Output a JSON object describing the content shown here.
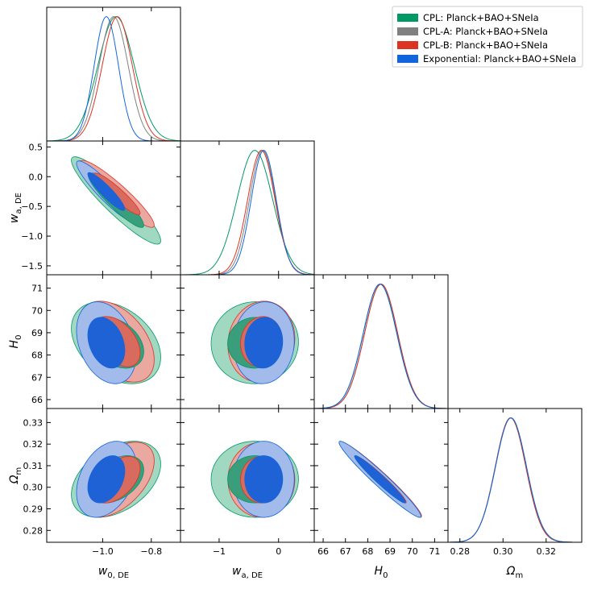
{
  "chart_data": {
    "type": "corner",
    "title": "",
    "legend": {
      "placement": "top-right",
      "entries": [
        {
          "label": "CPL: Planck+BAO+SNeIa",
          "color": "#009966"
        },
        {
          "label": "CPL-A: Planck+BAO+SNeIa",
          "color": "#808080"
        },
        {
          "label": "CPL-B: Planck+BAO+SNeIa",
          "color": "#dd3322"
        },
        {
          "label": "Exponential: Planck+BAO+SNeIa",
          "color": "#1166dd"
        }
      ]
    },
    "parameters": [
      {
        "name": "w0",
        "label": "w",
        "sub": "0, DE",
        "range": [
          -1.23,
          -0.68
        ],
        "ticks": [
          -1.0,
          -0.8
        ],
        "tick_labels": [
          "−1.0",
          "−0.8"
        ]
      },
      {
        "name": "wa",
        "label": "w",
        "sub": "a, DE",
        "range": [
          -1.65,
          0.6
        ],
        "ticks": [
          -1,
          0
        ],
        "tick_labels": [
          "−1",
          "0"
        ],
        "y_ticks": [
          0.5,
          0.0,
          -0.5,
          -1.0,
          -1.5
        ],
        "y_tick_labels": [
          "0.5",
          "0.0",
          "−0.5",
          "−1.0",
          "−1.5"
        ]
      },
      {
        "name": "H0",
        "label": "H",
        "sub": "0",
        "range": [
          65.6,
          71.6
        ],
        "ticks": [
          66,
          67,
          68,
          69,
          70,
          71
        ],
        "tick_labels": [
          "66",
          "67",
          "68",
          "69",
          "70",
          "71"
        ]
      },
      {
        "name": "Om",
        "label": "Ω",
        "sub": "m",
        "range": [
          0.2745,
          0.3365
        ],
        "ticks": [
          0.28,
          0.3,
          0.32
        ],
        "tick_labels": [
          "0.28",
          "0.30",
          "0.32"
        ],
        "y_ticks": [
          0.33,
          0.32,
          0.31,
          0.3,
          0.29,
          0.28
        ],
        "y_tick_labels": [
          "0.33",
          "0.32",
          "0.31",
          "0.30",
          "0.29",
          "0.28"
        ]
      }
    ],
    "series": [
      {
        "name": "CPL",
        "color": "#009966",
        "fill1": "#a0d8c2",
        "fill2": "#3a9d7c",
        "mean": {
          "w0": -0.945,
          "wa": -0.4,
          "H0": 68.55,
          "Om": 0.3037
        },
        "sigma": {
          "w0": 0.075,
          "wa": 0.3,
          "H0": 0.75,
          "Om": 0.0072
        },
        "corr": {
          "w0|wa": -0.92,
          "w0|H0": -0.35,
          "w0|Om": 0.4,
          "wa|H0": 0.02,
          "wa|Om": 0.0,
          "H0|Om": -0.97
        }
      },
      {
        "name": "CPL-A",
        "color": "#808080",
        "fill1": "#b9b9b9",
        "fill2": "#8a8a8a",
        "mean": {
          "w0": -0.955,
          "wa": -0.27,
          "H0": 68.6,
          "Om": 0.3035
        },
        "sigma": {
          "w0": 0.06,
          "wa": 0.22,
          "H0": 0.74,
          "Om": 0.0071
        },
        "corr": {
          "w0|wa": -0.93,
          "w0|H0": -0.4,
          "w0|Om": 0.45,
          "wa|H0": 0.05,
          "wa|Om": 0.0,
          "H0|Om": -0.97
        }
      },
      {
        "name": "CPL-B",
        "color": "#dd3322",
        "fill1": "#eaa8a0",
        "fill2": "#d86a5e",
        "mean": {
          "w0": -0.94,
          "wa": -0.29,
          "H0": 68.6,
          "Om": 0.3035
        },
        "sigma": {
          "w0": 0.062,
          "wa": 0.23,
          "H0": 0.74,
          "Om": 0.0071
        },
        "corr": {
          "w0|wa": -0.93,
          "w0|H0": -0.45,
          "w0|Om": 0.5,
          "wa|H0": 0.08,
          "wa|Om": 0.0,
          "H0|Om": -0.97
        }
      },
      {
        "name": "Exponential",
        "color": "#1166dd",
        "fill1": "#a3bbea",
        "fill2": "#1f62d6",
        "mean": {
          "w0": -0.985,
          "wa": -0.25,
          "H0": 68.55,
          "Om": 0.3037
        },
        "sigma": {
          "w0": 0.05,
          "wa": 0.21,
          "H0": 0.75,
          "Om": 0.0072
        },
        "corr": {
          "w0|wa": -0.92,
          "w0|H0": -0.3,
          "w0|Om": 0.35,
          "wa|H0": 0.05,
          "wa|Om": 0.0,
          "H0|Om": -0.97
        }
      }
    ]
  }
}
